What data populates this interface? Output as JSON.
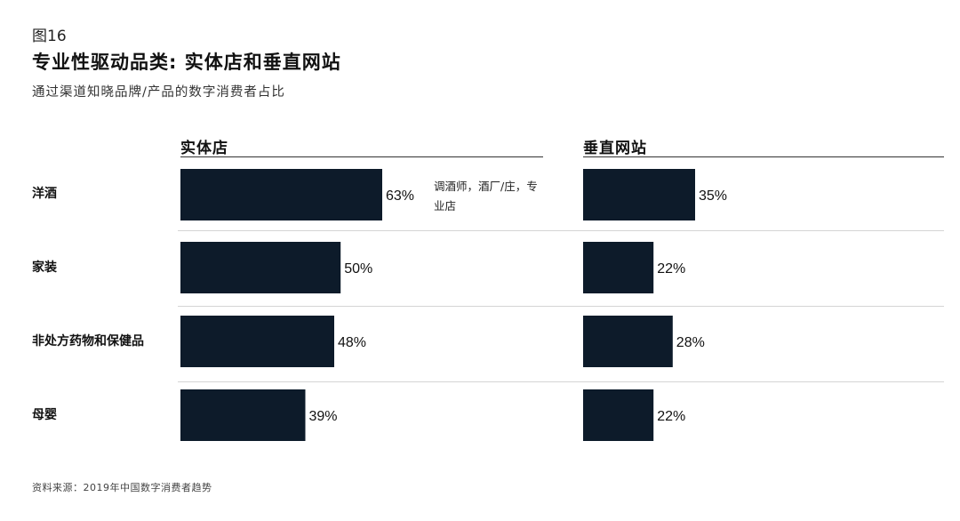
{
  "figure_number": "图16",
  "title": "专业性驱动品类: 实体店和垂直网站",
  "subtitle": "通过渠道知晓品牌/产品的数字消费者占比",
  "source": "资料来源：2019年中国数字消费者趋势",
  "annotation": "调酒师，酒厂/庄，专业店",
  "colors": {
    "bar": "#0d1b2a",
    "text": "#111111",
    "separator": "#d4d4d4"
  },
  "chart_data": [
    {
      "type": "bar",
      "orientation": "horizontal",
      "title": "实体店",
      "categories": [
        "洋酒",
        "家装",
        "非处方药物和保健品",
        "母婴"
      ],
      "values": [
        63,
        50,
        48,
        39
      ],
      "value_labels": [
        "63%",
        "50%",
        "48%",
        "39%"
      ],
      "unit": "%",
      "xlim": [
        0,
        100
      ],
      "grid": false
    },
    {
      "type": "bar",
      "orientation": "horizontal",
      "title": "垂直网站",
      "categories": [
        "洋酒",
        "家装",
        "非处方药物和保健品",
        "母婴"
      ],
      "values": [
        35,
        22,
        28,
        22
      ],
      "value_labels": [
        "35%",
        "22%",
        "28%",
        "22%"
      ],
      "unit": "%",
      "xlim": [
        0,
        100
      ],
      "grid": false
    }
  ]
}
